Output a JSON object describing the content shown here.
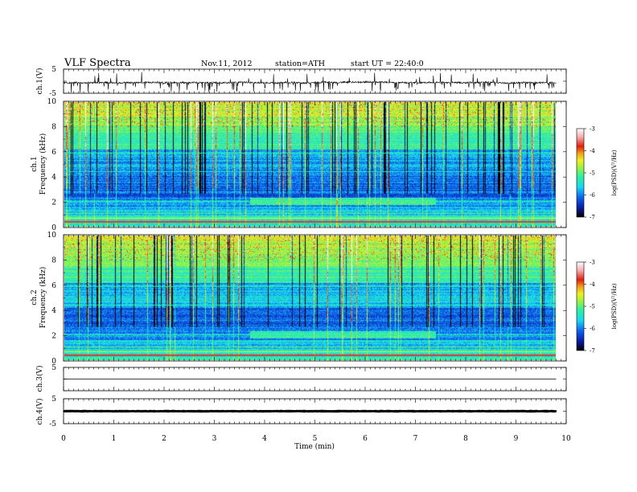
{
  "header": {
    "title": "VLF  Spectra",
    "date": "Nov.11, 2012",
    "station": "station=ATH",
    "start": "start  UT  =   22:40:0"
  },
  "colors": {
    "spectrum_scale": [
      "#000000",
      "#0a1a9a",
      "#1060f0",
      "#18d8f0",
      "#30f0a0",
      "#a0f040",
      "#f0f020",
      "#f0a020",
      "#e02010",
      "#f4a8a8",
      "#ffffff"
    ],
    "trace": "#000000"
  },
  "chart_data": [
    {
      "type": "line",
      "name": "ch.1 waveform",
      "ylabel": "ch.1(V)",
      "ylim": [
        -5,
        5
      ],
      "yticks": [
        "5",
        "0",
        "-5"
      ],
      "xlim": [
        0,
        10
      ],
      "baseline": -0.6,
      "noise": 0.35,
      "spike_count": 120
    },
    {
      "type": "heatmap",
      "name": "ch.1 spectrogram",
      "ylabel": "Frequency  (kHz)",
      "ylabel2": "ch.1",
      "ylim": [
        0,
        10
      ],
      "yticks": [
        "0",
        "2",
        "4",
        "6",
        "8",
        "10"
      ],
      "xlim": [
        0,
        9.8
      ],
      "colorbar": {
        "label": "log(PSD)(V²/Hz)",
        "range": [
          -7,
          -3
        ],
        "ticks": [
          "-3",
          "-4",
          "-5",
          "-6",
          "-7"
        ]
      }
    },
    {
      "type": "heatmap",
      "name": "ch.2 spectrogram",
      "ylabel": "Frequency  (kHz)",
      "ylabel2": "ch.2",
      "ylim": [
        0,
        10
      ],
      "yticks": [
        "0",
        "2",
        "4",
        "6",
        "8",
        "10"
      ],
      "xlim": [
        0,
        9.8
      ],
      "colorbar": {
        "label": "log(PSD)(V²/Hz)",
        "range": [
          -7,
          -3
        ],
        "ticks": [
          "-3",
          "-4",
          "-5",
          "-6",
          "-7"
        ]
      }
    },
    {
      "type": "line",
      "name": "ch.3 waveform",
      "ylabel": "ch.3(V)",
      "ylim": [
        -5,
        5
      ],
      "yticks": [
        "5",
        "0"
      ],
      "xlim": [
        0,
        10
      ],
      "baseline": 0
    },
    {
      "type": "line",
      "name": "ch.4 waveform",
      "ylabel": "ch.4(V)",
      "ylim": [
        -5,
        5
      ],
      "yticks": [
        "5",
        "0",
        "-5"
      ],
      "xlim": [
        0,
        10
      ],
      "baseline": 0,
      "band_halfwidth": 0.3
    }
  ],
  "xaxis": {
    "label": "Time  (min)",
    "range": [
      0,
      10
    ],
    "ticks": [
      "0",
      "1",
      "2",
      "3",
      "4",
      "5",
      "6",
      "7",
      "8",
      "9",
      "10"
    ]
  }
}
